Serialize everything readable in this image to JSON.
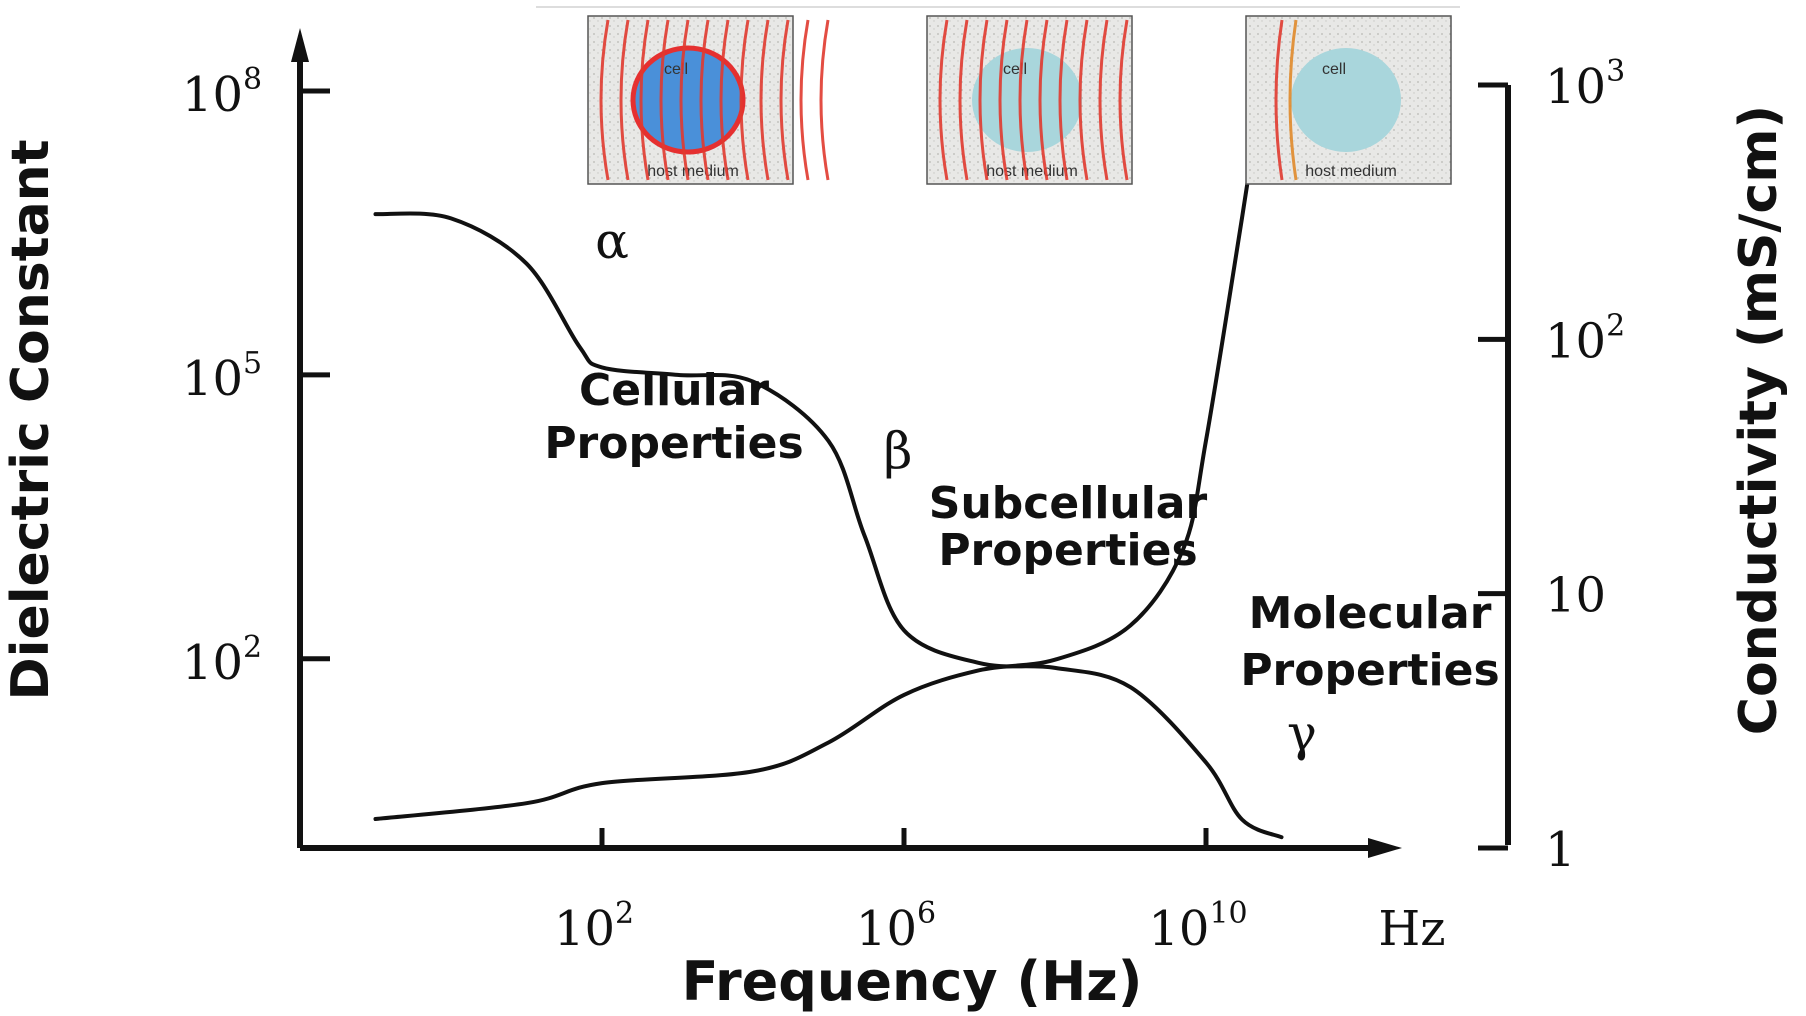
{
  "chart_data": {
    "type": "line",
    "title": "",
    "xlabel": "Frequency (Hz)",
    "ylabel_left": "Dielectric Constant",
    "ylabel_right": "Conductivity (mS/cm)",
    "x_unit": "Hz",
    "x_scale": "log",
    "y_left_scale": "log",
    "y_right_scale": "log",
    "xlim": [
      0.01,
      100000000000000.0
    ],
    "ylim_left": [
      1,
      100000000.0
    ],
    "ylim_right": [
      1,
      1000
    ],
    "x_ticks": [
      {
        "base": "10",
        "exp": "2",
        "value": 100
      },
      {
        "base": "10",
        "exp": "6",
        "value": 1000000
      },
      {
        "base": "10",
        "exp": "10",
        "value": 10000000000
      }
    ],
    "y_left_ticks": [
      {
        "base": "10",
        "exp": "8",
        "value": 100000000
      },
      {
        "base": "10",
        "exp": "5",
        "value": 100000
      },
      {
        "base": "10",
        "exp": "2",
        "value": 100
      }
    ],
    "y_right_ticks": [
      {
        "base": "10",
        "exp": "3",
        "value": 1000
      },
      {
        "base": "10",
        "exp": "2",
        "value": 100
      },
      {
        "base": "10",
        "exp": "",
        "value": 10
      },
      {
        "base": "1",
        "exp": "",
        "value": 1
      }
    ],
    "grid": false,
    "series": [
      {
        "axis": "left",
        "color": "#111111",
        "points": [
          {
            "x": 0.1,
            "y": 5000000
          },
          {
            "x": 1,
            "y": 4500000
          },
          {
            "x": 10,
            "y": 1500000
          },
          {
            "x": 50,
            "y": 200000
          },
          {
            "x": 100,
            "y": 120000
          },
          {
            "x": 1000,
            "y": 100000
          },
          {
            "x": 10000,
            "y": 85000
          },
          {
            "x": 100000,
            "y": 20000
          },
          {
            "x": 300000,
            "y": 2000
          },
          {
            "x": 1000000,
            "y": 200
          },
          {
            "x": 10000000,
            "y": 90
          },
          {
            "x": 100000000,
            "y": 80
          },
          {
            "x": 1000000000,
            "y": 50
          },
          {
            "x": 10000000000,
            "y": 8
          },
          {
            "x": 30000000000,
            "y": 2
          },
          {
            "x": 100000000000,
            "y": 1.3
          }
        ]
      },
      {
        "axis": "right",
        "color": "#111111",
        "points": [
          {
            "x": 0.1,
            "y": 1.3
          },
          {
            "x": 10,
            "y": 1.5
          },
          {
            "x": 100,
            "y": 1.8
          },
          {
            "x": 10000,
            "y": 2.0
          },
          {
            "x": 100000,
            "y": 2.6
          },
          {
            "x": 1000000,
            "y": 4.0
          },
          {
            "x": 10000000,
            "y": 5.0
          },
          {
            "x": 100000000,
            "y": 5.5
          },
          {
            "x": 1000000000,
            "y": 7.5
          },
          {
            "x": 5000000000,
            "y": 15
          },
          {
            "x": 10000000000,
            "y": 40
          },
          {
            "x": 30000000000,
            "y": 300
          },
          {
            "x": 50000000000,
            "y": 800
          }
        ]
      }
    ],
    "annotations": [
      {
        "text": "α",
        "kind": "greek"
      },
      {
        "text": "β",
        "kind": "greek"
      },
      {
        "text": "γ",
        "kind": "greek"
      },
      {
        "line1": "Cellular",
        "line2": "Properties",
        "kind": "label"
      },
      {
        "line1": "Subcellular",
        "line2": "Properties",
        "kind": "label"
      },
      {
        "line1": "Molecular",
        "line2": "Properties",
        "kind": "label"
      }
    ],
    "panels": [
      {
        "cell_label": "cell",
        "medium_label": "host medium",
        "cell_color": "#4a90d9",
        "cell_border": "#e53030"
      },
      {
        "cell_label": "cell",
        "medium_label": "host medium",
        "cell_color": "#a9d6dc",
        "cell_border": "none"
      },
      {
        "cell_label": "cell",
        "medium_label": "host medium",
        "cell_color": "#a9d6dc",
        "cell_border": "none"
      }
    ],
    "wave_color": "#e03a2f"
  }
}
